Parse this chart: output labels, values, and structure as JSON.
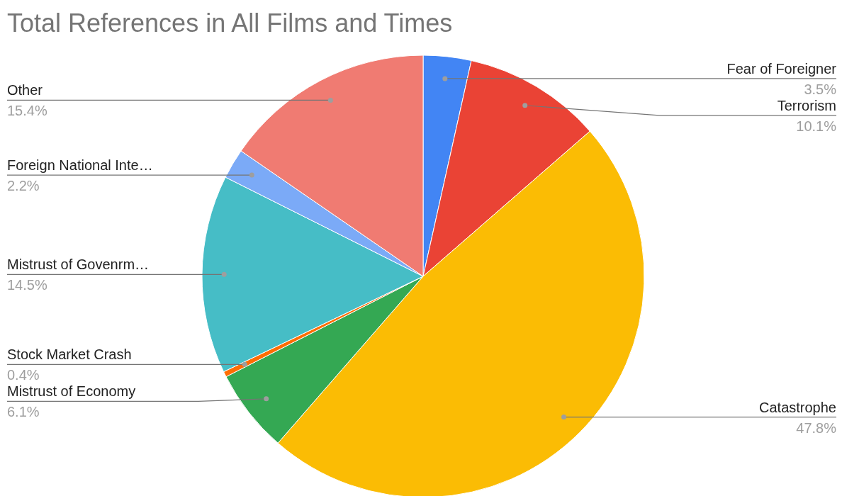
{
  "chart_data": {
    "type": "pie",
    "title": "Total References in All Films and Times",
    "categories": [
      "Fear of Foreigner",
      "Terrorism",
      "Catastrophe",
      "Mistrust of Economy",
      "Stock Market Crash",
      "Mistrust of Govenrm…",
      "Foreign National Inte…",
      "Other"
    ],
    "values": [
      3.5,
      10.1,
      47.8,
      6.1,
      0.4,
      14.5,
      2.2,
      15.4
    ],
    "colors": [
      "#4285f4",
      "#ea4335",
      "#fbbc04",
      "#34a853",
      "#ff6d01",
      "#46bdc6",
      "#7baaf7",
      "#f07b72"
    ],
    "value_labels": [
      "3.5%",
      "10.1%",
      "47.8%",
      "6.1%",
      "0.4%",
      "14.5%",
      "2.2%",
      "15.4%"
    ]
  }
}
